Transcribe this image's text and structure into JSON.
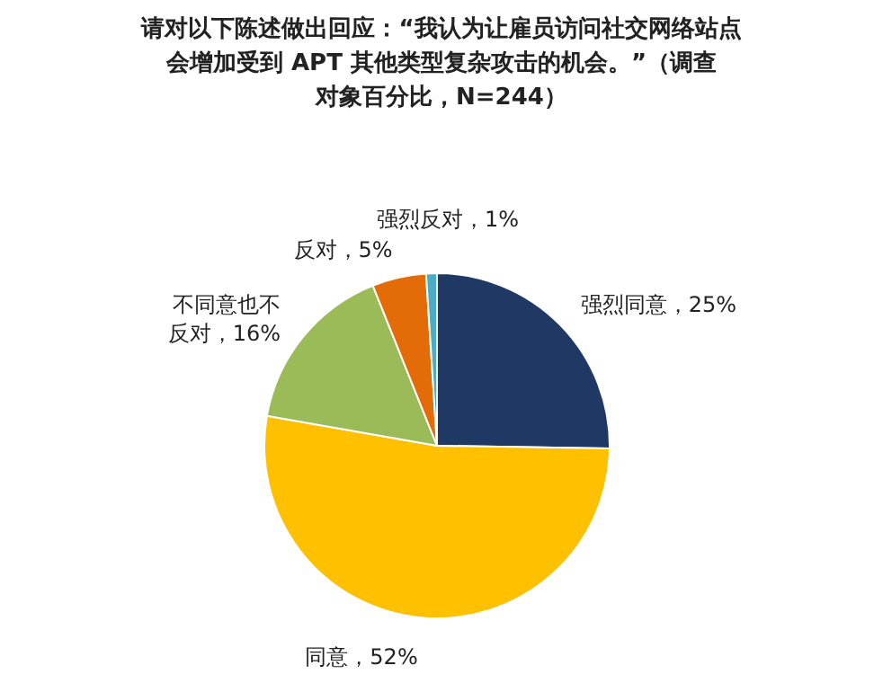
{
  "chart_data": {
    "type": "pie",
    "title": "请对以下陈述做出回应：“我认为让雇员访问社交网络站点会增加受到 APT 其他类型复杂攻击的机会。”（调查对象百分比，N=244）",
    "categories": [
      "强烈同意",
      "同意",
      "不同意也不反对",
      "反对",
      "强烈反对"
    ],
    "values": [
      25,
      52,
      16,
      5,
      1
    ],
    "value_labels": [
      "，25%",
      "，52%",
      "，16%",
      "，5%",
      "，1%"
    ],
    "colors": [
      "#1f3864",
      "#ffc000",
      "#9bbb59",
      "#e36c09",
      "#4bacc6"
    ]
  }
}
